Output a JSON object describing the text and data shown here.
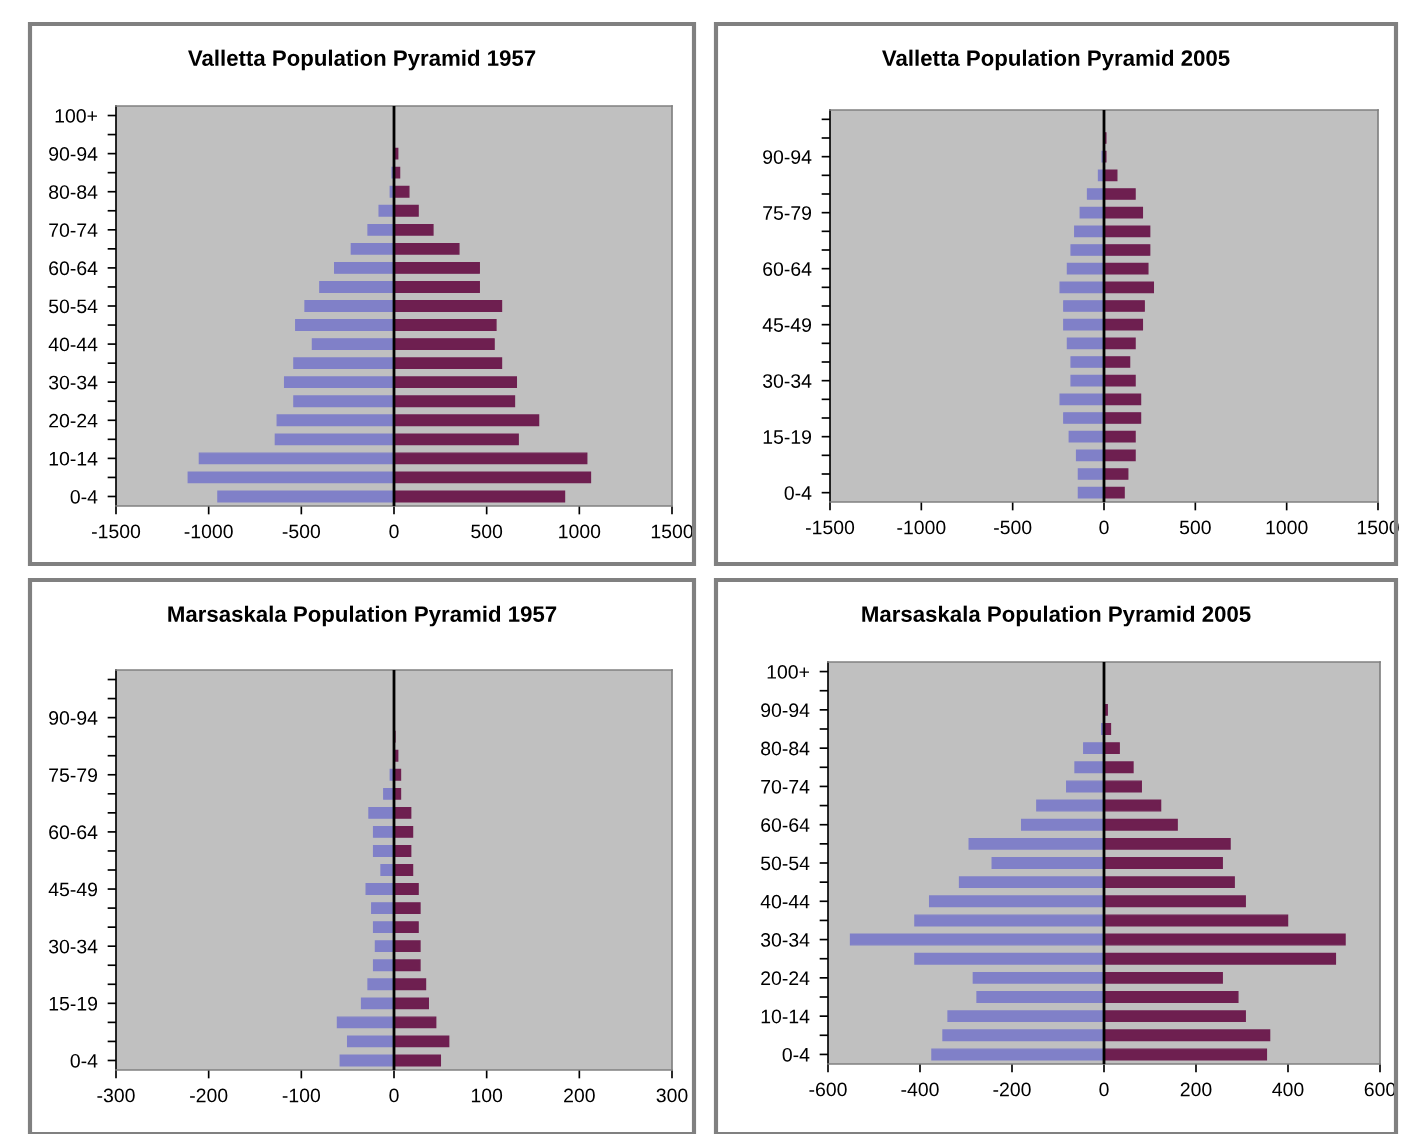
{
  "chart_data": [
    {
      "type": "bar",
      "orientation": "horizontal",
      "title": "Valletta Population Pyramid 1957",
      "stacked": true,
      "categories": [
        "100+",
        null,
        "90-94",
        null,
        "80-84",
        null,
        "70-74",
        null,
        "60-64",
        null,
        "50-54",
        null,
        "40-44",
        null,
        "30-34",
        null,
        "20-24",
        null,
        "10-14",
        null,
        "0-4"
      ],
      "series": [
        {
          "color": "#8080c8",
          "values": [
            0,
            0,
            0,
            -10,
            -20,
            -80,
            -140,
            -230,
            -320,
            -400,
            -480,
            -530,
            -440,
            -540,
            -590,
            -540,
            -630,
            -640,
            -1050,
            -1110,
            -950
          ]
        },
        {
          "color": "#6e1f50",
          "values": [
            0,
            0,
            20,
            30,
            80,
            130,
            210,
            350,
            460,
            460,
            580,
            550,
            540,
            580,
            660,
            650,
            780,
            670,
            1040,
            1060,
            920
          ]
        }
      ],
      "xlim": [
        -1500,
        1500
      ],
      "xticks": [
        -1500,
        -1000,
        -500,
        0,
        500,
        1000,
        1500
      ],
      "ref_lines": [
        {
          "axis": "x",
          "value": 0,
          "color": "#000000"
        }
      ],
      "grid": false,
      "legend": false
    },
    {
      "type": "bar",
      "orientation": "horizontal",
      "title": "Valletta Population Pyramid 2005",
      "stacked": true,
      "categories": [
        null,
        null,
        "90-94",
        null,
        null,
        "75-79",
        null,
        null,
        "60-64",
        null,
        null,
        "45-49",
        null,
        null,
        "30-34",
        null,
        null,
        "15-19",
        null,
        null,
        "0-4"
      ],
      "series": [
        {
          "color": "#8080c8",
          "values": [
            0,
            0,
            -10,
            -30,
            -90,
            -130,
            -160,
            -180,
            -200,
            -240,
            -220,
            -220,
            -200,
            -180,
            -180,
            -240,
            -220,
            -190,
            -150,
            -140,
            -140
          ]
        },
        {
          "color": "#6e1f50",
          "values": [
            0,
            10,
            10,
            70,
            170,
            210,
            250,
            250,
            240,
            270,
            220,
            210,
            170,
            140,
            170,
            200,
            200,
            170,
            170,
            130,
            110
          ]
        }
      ],
      "xlim": [
        -1500,
        1500
      ],
      "xticks": [
        -1500,
        -1000,
        -500,
        0,
        500,
        1000,
        1500
      ],
      "ref_lines": [
        {
          "axis": "x",
          "value": 0,
          "color": "#000000"
        }
      ],
      "grid": false,
      "legend": false
    },
    {
      "type": "bar",
      "orientation": "horizontal",
      "title": "Marsaskala Population Pyramid 1957",
      "stacked": true,
      "categories": [
        null,
        null,
        "90-94",
        null,
        null,
        "75-79",
        null,
        null,
        "60-64",
        null,
        null,
        "45-49",
        null,
        null,
        "30-34",
        null,
        null,
        "15-19",
        null,
        null,
        "0-4"
      ],
      "series": [
        {
          "color": "#8080c8",
          "values": [
            0,
            0,
            0,
            0,
            null,
            -4,
            -11,
            -27,
            -22,
            -22,
            -14,
            -30,
            -24,
            -22,
            -20,
            -22,
            -28,
            -35,
            -61,
            -50,
            -58
          ]
        },
        {
          "color": "#6e1f50",
          "values": [
            0,
            0,
            0,
            1,
            4,
            7,
            7,
            18,
            20,
            18,
            20,
            26,
            28,
            26,
            28,
            28,
            34,
            37,
            45,
            59,
            50
          ]
        }
      ],
      "xlim": [
        -300,
        300
      ],
      "xticks": [
        -300,
        -200,
        -100,
        0,
        100,
        200,
        300
      ],
      "ref_lines": [
        {
          "axis": "x",
          "value": 0,
          "color": "#000000"
        }
      ],
      "grid": false,
      "legend": false
    },
    {
      "type": "bar",
      "orientation": "horizontal",
      "title": "Marsaskala Population Pyramid 2005",
      "stacked": true,
      "categories": [
        "100+",
        null,
        "90-94",
        null,
        "80-84",
        null,
        "70-74",
        null,
        "60-64",
        null,
        "50-54",
        null,
        "40-44",
        null,
        "30-34",
        null,
        "20-24",
        null,
        "10-14",
        null,
        "0-4"
      ],
      "series": [
        {
          "color": "#8080c8",
          "values": [
            0,
            0,
            0,
            -5,
            -44,
            -63,
            -81,
            -146,
            -179,
            -293,
            -243,
            -314,
            -379,
            -411,
            -551,
            -411,
            -284,
            -276,
            -339,
            -350,
            -374
          ]
        },
        {
          "color": "#6e1f50",
          "values": [
            0,
            0,
            7,
            14,
            33,
            63,
            81,
            123,
            159,
            274,
            257,
            283,
            307,
            399,
            524,
            503,
            257,
            291,
            307,
            360,
            353
          ]
        }
      ],
      "xlim": [
        -600,
        600
      ],
      "xticks": [
        -600,
        -400,
        -200,
        0,
        200,
        400,
        600
      ],
      "ref_lines": [
        {
          "axis": "x",
          "value": 0,
          "color": "#000000"
        }
      ],
      "grid": false,
      "legend": false
    }
  ]
}
